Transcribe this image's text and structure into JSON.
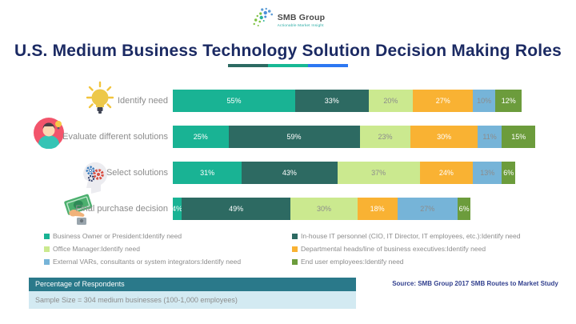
{
  "header": {
    "logo_text": "SMB Group",
    "logo_tagline": "Actionable Market Insight",
    "title": "U.S. Medium Business Technology Solution Decision Making Roles",
    "underline_colors": [
      "#2d6a62",
      "#17b894",
      "#2d77f2"
    ]
  },
  "chart_data": {
    "type": "bar",
    "subtype": "horizontal-stacked",
    "unit": "%",
    "categories": [
      "Identify need",
      "Evaluate different solutions",
      "Select solutions",
      "Final purchase decision"
    ],
    "series": [
      {
        "name": "Business Owner or President:Identify need",
        "color": "#19b394",
        "label_color": "#ffffff",
        "values": [
          55,
          25,
          31,
          4
        ]
      },
      {
        "name": "In-house IT personnel (CIO, IT Director, IT employees, etc.):Identify need",
        "color": "#2d6a62",
        "label_color": "#ffffff",
        "values": [
          33,
          59,
          43,
          49
        ]
      },
      {
        "name": "Office Manager:Identify need",
        "color": "#cbe98f",
        "label_color": "#8c8c8c",
        "values": [
          20,
          23,
          37,
          30
        ]
      },
      {
        "name": "Departmental heads/line of business executives:Identify need",
        "color": "#f9b233",
        "label_color": "#ffffff",
        "values": [
          27,
          30,
          24,
          18
        ]
      },
      {
        "name": "External VARs, consultants or system integrators:Identify need",
        "color": "#76b4d8",
        "label_color": "#8c8c8c",
        "values": [
          10,
          11,
          13,
          27
        ]
      },
      {
        "name": "End user employees:Identify need",
        "color": "#6c9c3c",
        "label_color": "#ffffff",
        "values": [
          12,
          15,
          6,
          6
        ]
      }
    ],
    "value_suffix": "%",
    "xlim": [
      0,
      100
    ],
    "grid": false,
    "axes_shown": false,
    "legend_position": "bottom",
    "legend_columns": {
      "left": [
        0,
        2,
        4
      ],
      "right": [
        1,
        3,
        5
      ]
    }
  },
  "footer": {
    "axis_note": "Percentage of Respondents",
    "sample_size": "Sample Size = 304 medium businesses (100-1,000 employees)",
    "source": "Source: SMB Group 2017 SMB Routes to Market Study"
  }
}
